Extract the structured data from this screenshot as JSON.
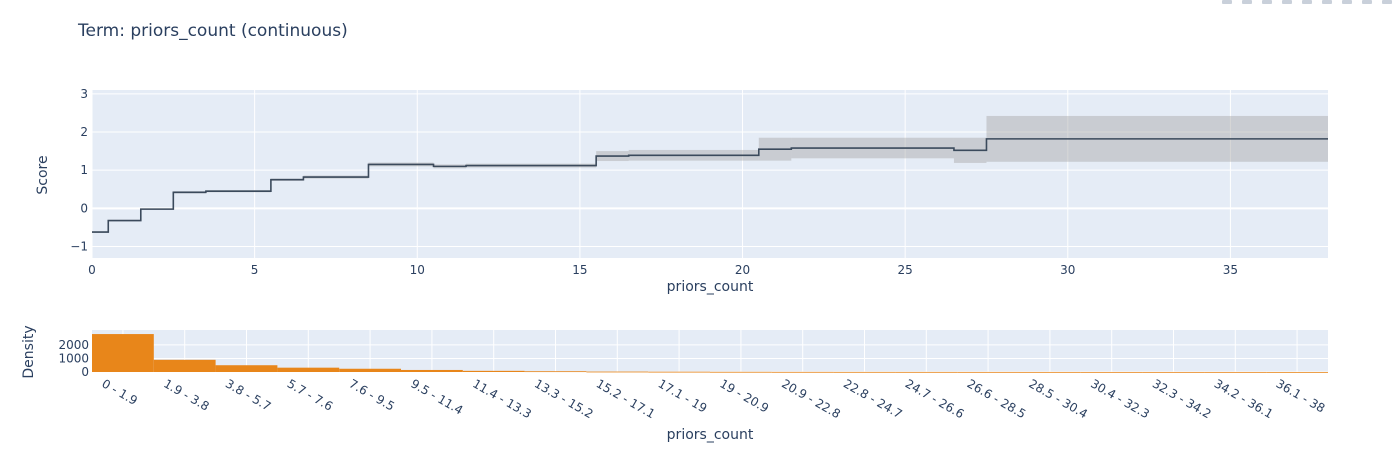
{
  "chart_data": [
    {
      "type": "line",
      "title": "Term: priors_count (continuous)",
      "xlabel": "priors_count",
      "ylabel": "Score",
      "xlim": [
        0,
        38
      ],
      "ylim": [
        -1.3,
        3.1
      ],
      "xticks": [
        0,
        5,
        10,
        15,
        20,
        25,
        30,
        35
      ],
      "yticks": [
        -1,
        0,
        1,
        2,
        3
      ],
      "ytick_labels": [
        "−1",
        "0",
        "1",
        "2",
        "3"
      ],
      "step_edges": [
        0,
        0.5,
        1.5,
        2.5,
        3.5,
        5.5,
        6.5,
        8.5,
        10.5,
        11.5,
        15.5,
        16.5,
        20.5,
        21.5,
        26.5,
        27.5,
        38
      ],
      "step_values": [
        -0.62,
        -0.32,
        -0.02,
        0.42,
        0.45,
        0.75,
        0.82,
        1.15,
        1.1,
        1.12,
        1.37,
        1.39,
        1.55,
        1.58,
        1.52,
        1.82
      ],
      "upper": [
        -0.6,
        -0.3,
        0.0,
        0.45,
        0.48,
        0.78,
        0.86,
        1.2,
        1.15,
        1.17,
        1.5,
        1.53,
        1.85,
        1.85,
        1.85,
        2.42
      ],
      "lower": [
        -0.64,
        -0.34,
        -0.04,
        0.39,
        0.42,
        0.72,
        0.78,
        1.1,
        1.05,
        1.07,
        1.24,
        1.25,
        1.25,
        1.31,
        1.19,
        1.22
      ],
      "line_color": "#3b4a5c",
      "band_color": "#a6a6a6",
      "grid": true
    },
    {
      "type": "bar",
      "xlabel": "priors_count",
      "ylabel": "Density",
      "ylim": [
        0,
        3100
      ],
      "yticks": [
        0,
        1000,
        2000
      ],
      "categories": [
        "0 - 1.9",
        "1.9 - 3.8",
        "3.8 - 5.7",
        "5.7 - 7.6",
        "7.6 - 9.5",
        "9.5 - 11.4",
        "11.4 - 13.3",
        "13.3 - 15.2",
        "15.2 - 17.1",
        "17.1 - 19",
        "19 - 20.9",
        "20.9 - 22.8",
        "22.8 - 24.7",
        "24.7 - 26.6",
        "26.6 - 28.5",
        "28.5 - 30.4",
        "30.4 - 32.3",
        "32.3 - 34.2",
        "34.2 - 36.1",
        "36.1 - 38"
      ],
      "values": [
        2800,
        900,
        500,
        320,
        240,
        150,
        85,
        55,
        30,
        20,
        12,
        8,
        6,
        5,
        4,
        3,
        2,
        2,
        2,
        1
      ],
      "bar_color": "#e8861a",
      "grid": true
    }
  ]
}
